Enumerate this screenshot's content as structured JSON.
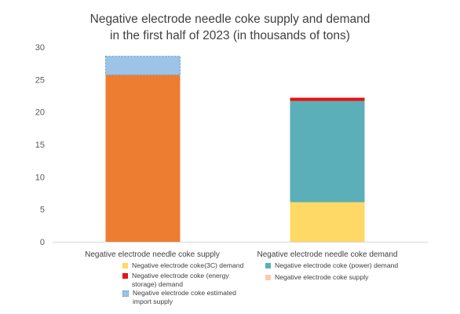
{
  "colors": {
    "supply": "#ED7D31",
    "import": "#9DC3E6",
    "import_border": "#5B9BD5",
    "demand_3c": "#FFD966",
    "demand_power": "#5BAFB9",
    "demand_storage": "#E81010",
    "supply_legend": "#F8CBAD",
    "axis": "#D9D9D9",
    "text": "#595959"
  },
  "chart_data": {
    "type": "bar",
    "stacked": true,
    "title": [
      "Negative electrode needle coke supply and demand",
      "in the first half of 2023 (in thousands of tons)"
    ],
    "categories": [
      "Negative electrode needle coke supply",
      "Negative electrode needle coke demand"
    ],
    "ylim": [
      0,
      30
    ],
    "yticks": [
      0,
      5,
      10,
      15,
      20,
      25,
      30
    ],
    "grid": false,
    "legend_position": "bottom",
    "series": [
      {
        "name": "Negative electrode  coke(3C) demand",
        "values": [
          0,
          6.1
        ],
        "color": "#FFD966"
      },
      {
        "name": "Negative electrode coke (power) demand",
        "values": [
          0,
          15.6
        ],
        "color": "#5BAFB9"
      },
      {
        "name": "Negative electrode coke (energy storage) demand",
        "values": [
          0,
          0.5
        ],
        "color": "#E81010"
      },
      {
        "name": "Negative electrode coke supply",
        "values": [
          25.7,
          0
        ],
        "color": "#ED7D31"
      },
      {
        "name": "Negative electrode  coke estimated import supply",
        "values": [
          2.9,
          0
        ],
        "color": "#9DC3E6",
        "style": "dashed-border"
      }
    ]
  },
  "legend": [
    {
      "label": "Negative electrode  coke(3C) demand",
      "swatch": "#FFD966",
      "icon": "square"
    },
    {
      "label": "Negative electrode coke (power) demand",
      "swatch": "#5BAFB9",
      "icon": "square"
    },
    {
      "label": "Negative electrode coke (energy storage) demand",
      "swatch": "#E81010",
      "icon": "square"
    },
    {
      "label": "Negative electrode coke supply",
      "swatch": "#F8CBAD",
      "icon": "square"
    },
    {
      "label": "Negative electrode  coke estimated import supply",
      "swatch": "#9DC3E6",
      "icon": "dotted-square"
    }
  ]
}
